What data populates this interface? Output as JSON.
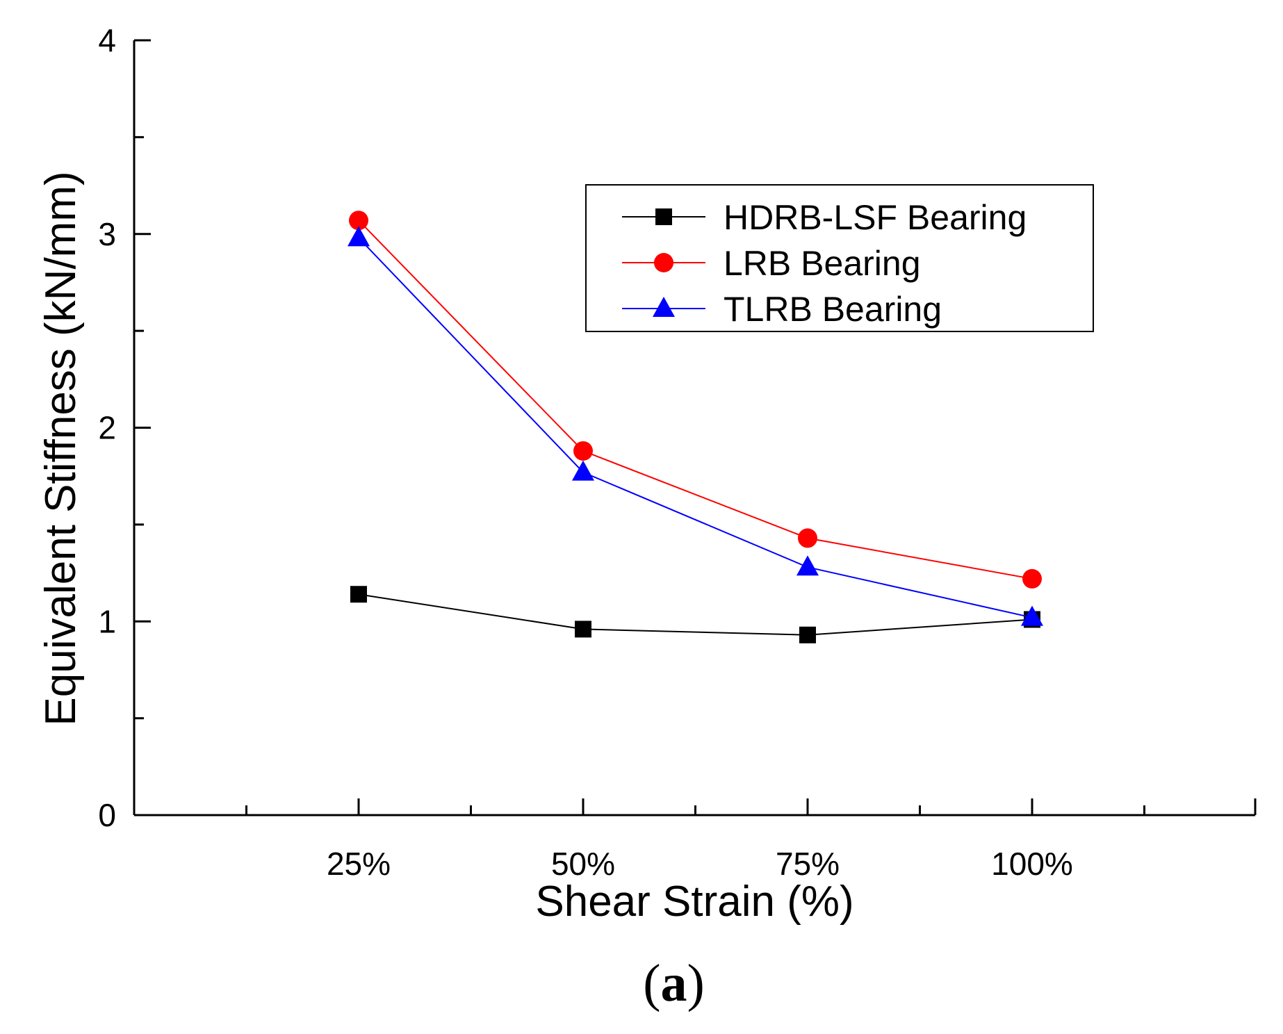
{
  "chart_data": {
    "type": "line",
    "xlabel": "Shear Strain (%)",
    "ylabel": "Equivalent Stiffness (kN/mm)",
    "categories": [
      "25%",
      "50%",
      "75%",
      "100%"
    ],
    "ylim": [
      0,
      4
    ],
    "yticks": [
      "0",
      "1",
      "2",
      "3",
      "4"
    ],
    "grid": false,
    "legend_position": "top-right",
    "series": [
      {
        "name": "HDRB-LSF Bearing",
        "color": "#000000",
        "marker": "square",
        "values": [
          1.14,
          0.96,
          0.93,
          1.01
        ]
      },
      {
        "name": "LRB Bearing",
        "color": "#ff0000",
        "marker": "circle",
        "values": [
          3.07,
          1.88,
          1.43,
          1.22
        ]
      },
      {
        "name": "TLRB Bearing",
        "color": "#0000ff",
        "marker": "triangle",
        "values": [
          2.98,
          1.77,
          1.28,
          1.02
        ]
      }
    ]
  },
  "caption_open": "(",
  "caption_letter": "a",
  "caption_close": ")"
}
